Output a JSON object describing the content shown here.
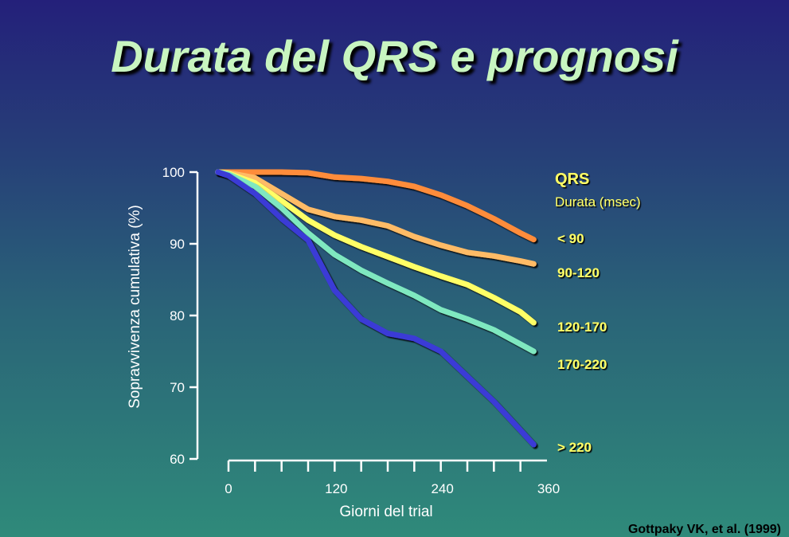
{
  "slide": {
    "title": "Durata del QRS e prognosi",
    "citation": "Gottpaky VK, et al. (1999)"
  },
  "chart_data": {
    "type": "line",
    "title": "",
    "xlabel": "Giorni del trial",
    "ylabel": "Sopravvivenza cumulativa (%)",
    "xlim": [
      0,
      360
    ],
    "ylim": [
      60,
      100
    ],
    "xticks": [
      0,
      120,
      240,
      360
    ],
    "yticks": [
      60,
      70,
      80,
      90,
      100
    ],
    "grid": false,
    "legend": {
      "title": "QRS",
      "subtitle": "Durata (msec)",
      "placement": "right"
    },
    "series": [
      {
        "name": "< 90",
        "color": "#ff8c3a",
        "points": [
          [
            -12,
            100
          ],
          [
            0,
            100
          ],
          [
            30,
            100
          ],
          [
            60,
            100
          ],
          [
            90,
            99.9
          ],
          [
            120,
            99.3
          ],
          [
            150,
            99.1
          ],
          [
            180,
            98.7
          ],
          [
            210,
            98
          ],
          [
            240,
            96.8
          ],
          [
            270,
            95.3
          ],
          [
            300,
            93.5
          ],
          [
            330,
            91.5
          ],
          [
            345,
            90.6
          ]
        ]
      },
      {
        "name": "90-120",
        "color": "#ffbb66",
        "points": [
          [
            -12,
            100
          ],
          [
            0,
            99.9
          ],
          [
            30,
            99.2
          ],
          [
            60,
            97
          ],
          [
            90,
            94.8
          ],
          [
            120,
            93.8
          ],
          [
            150,
            93.3
          ],
          [
            180,
            92.5
          ],
          [
            210,
            91
          ],
          [
            240,
            89.8
          ],
          [
            270,
            88.8
          ],
          [
            300,
            88.3
          ],
          [
            330,
            87.6
          ],
          [
            345,
            87.2
          ]
        ]
      },
      {
        "name": "120-170",
        "color": "#ffff66",
        "points": [
          [
            -12,
            100
          ],
          [
            0,
            99.8
          ],
          [
            30,
            98.5
          ],
          [
            60,
            96
          ],
          [
            90,
            93.3
          ],
          [
            120,
            91.2
          ],
          [
            150,
            89.6
          ],
          [
            180,
            88.2
          ],
          [
            210,
            86.8
          ],
          [
            240,
            85.5
          ],
          [
            270,
            84.3
          ],
          [
            300,
            82.5
          ],
          [
            330,
            80.5
          ],
          [
            345,
            79
          ]
        ]
      },
      {
        "name": "170-220",
        "color": "#7fe8c0",
        "points": [
          [
            -12,
            100
          ],
          [
            0,
            99.7
          ],
          [
            30,
            98
          ],
          [
            60,
            95
          ],
          [
            90,
            91.5
          ],
          [
            120,
            88.5
          ],
          [
            150,
            86.3
          ],
          [
            180,
            84.5
          ],
          [
            210,
            82.8
          ],
          [
            240,
            80.8
          ],
          [
            270,
            79.5
          ],
          [
            300,
            78
          ],
          [
            330,
            76
          ],
          [
            345,
            75
          ]
        ]
      },
      {
        "name": "> 220",
        "color": "#3b3bd6",
        "points": [
          [
            -12,
            100
          ],
          [
            0,
            99.5
          ],
          [
            30,
            97
          ],
          [
            60,
            93.5
          ],
          [
            90,
            90.5
          ],
          [
            120,
            83.5
          ],
          [
            150,
            79.5
          ],
          [
            180,
            77.5
          ],
          [
            210,
            76.8
          ],
          [
            240,
            75
          ],
          [
            270,
            71.5
          ],
          [
            300,
            68
          ],
          [
            330,
            64
          ],
          [
            345,
            62
          ]
        ]
      }
    ]
  }
}
